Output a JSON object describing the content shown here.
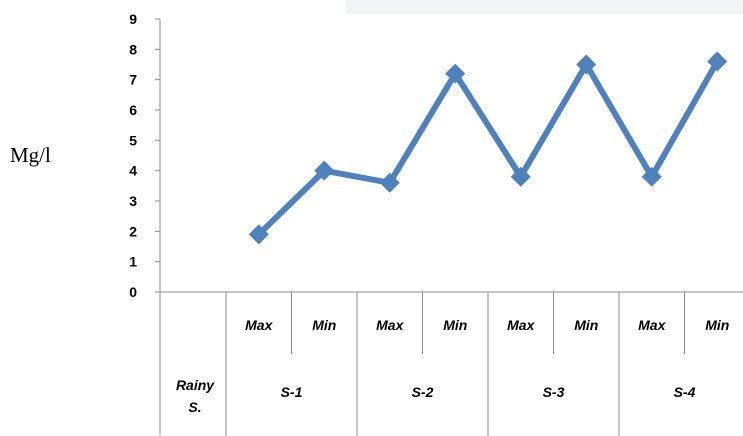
{
  "chart_data": {
    "type": "line",
    "ylabel": "Mg/l",
    "ylim": [
      0,
      9
    ],
    "yticks": [
      "0",
      "1",
      "2",
      "3",
      "4",
      "5",
      "6",
      "7",
      "8",
      "9"
    ],
    "season": [
      "Rainy",
      "S."
    ],
    "groups": [
      "S-1",
      "S-2",
      "S-3",
      "S-4"
    ],
    "categories": [
      "Max",
      "Min",
      "Max",
      "Min",
      "Max",
      "Min",
      "Max",
      "Min"
    ],
    "series": [
      {
        "values": [
          1.9,
          4.0,
          3.6,
          7.2,
          3.8,
          7.5,
          3.8,
          7.6
        ]
      }
    ],
    "line_color": "#4F81BD",
    "grid": false
  }
}
